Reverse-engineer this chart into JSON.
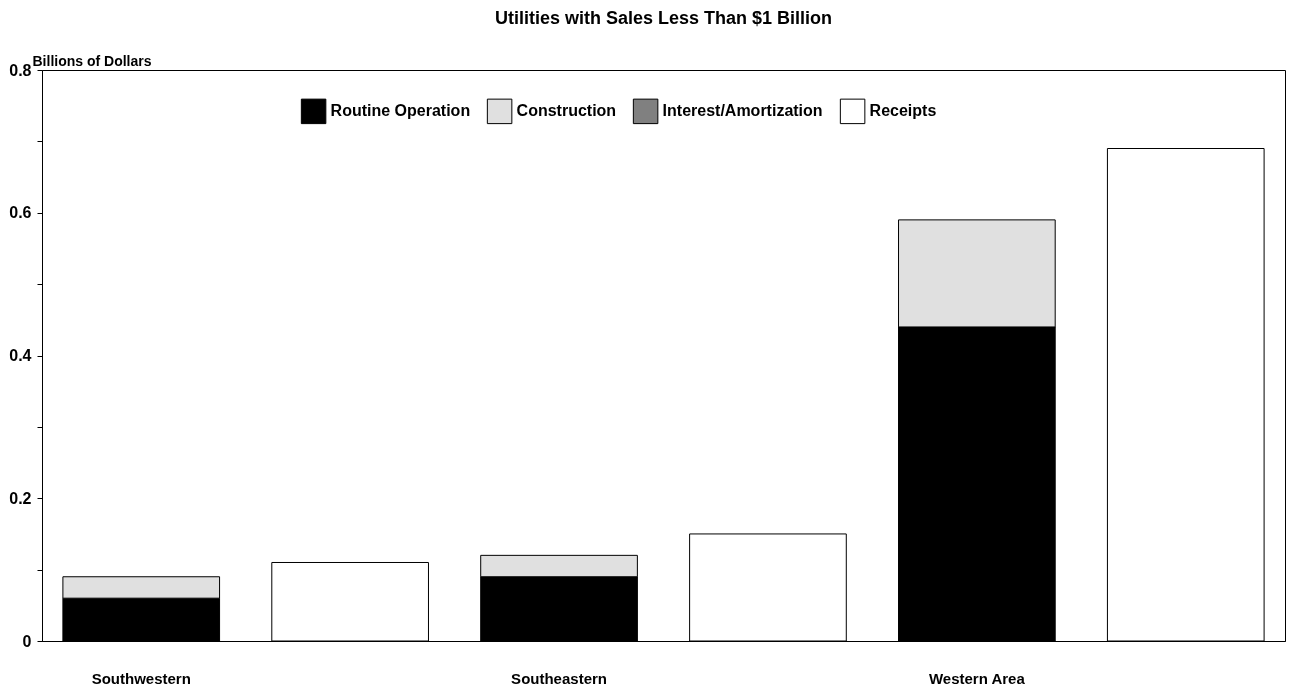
{
  "chart_data": {
    "type": "bar",
    "title": "Utilities with Sales Less Than $1 Billion",
    "ylabel": "Billions of Dollars",
    "categories": [
      "Southwestern",
      null,
      "Southeastern",
      null,
      "Western Area",
      null
    ],
    "series": [
      {
        "name": "Routine Operation",
        "color": "#000000",
        "values": [
          0.06,
          null,
          0.09,
          null,
          0.44,
          null
        ]
      },
      {
        "name": "Construction",
        "color": "#e0e0e0",
        "values": [
          0.03,
          null,
          0.03,
          null,
          0.15,
          null
        ]
      },
      {
        "name": "Interest/Amortization",
        "color": "#808080",
        "values": [
          null,
          null,
          null,
          null,
          null,
          null
        ]
      },
      {
        "name": "Receipts",
        "color": "#ffffff",
        "values": [
          null,
          0.11,
          null,
          0.15,
          null,
          0.69
        ]
      }
    ],
    "stacked": true,
    "ylim": [
      0,
      0.8
    ],
    "yticks": [
      0,
      {
        "value": 0.1,
        "label": null
      },
      0.2,
      {
        "value": 0.3,
        "label": null
      },
      0.4,
      {
        "value": 0.5,
        "label": null
      },
      0.6,
      {
        "value": 0.7,
        "label": null
      },
      0.8
    ],
    "grid": false,
    "legend": "top"
  }
}
